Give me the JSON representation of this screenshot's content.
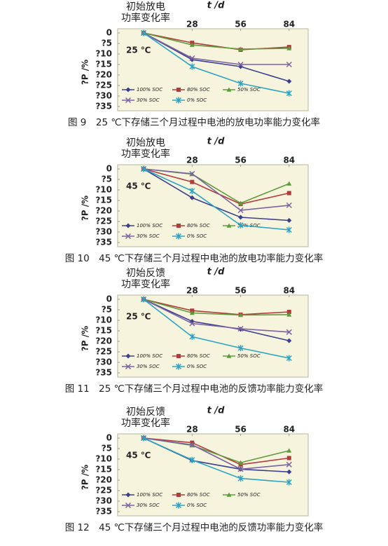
{
  "chart_data": [
    {
      "type": "line",
      "title": "图 9　25 ℃下存储三个月过程中电池的放电功率能力变化率",
      "annotation": [
        "初始放电",
        "功率变化率"
      ],
      "condition": "25 ℃",
      "xlabel": "t /d",
      "ylabel": "?P /%",
      "x": [
        0,
        28,
        56,
        84
      ],
      "xlim": [
        -15,
        95
      ],
      "xticks": [
        28,
        56,
        84
      ],
      "ylim": [
        -37,
        2
      ],
      "yticks": [
        0,
        {
          "value": -5,
          "label": "?5"
        },
        {
          "value": -10,
          "label": "?10"
        },
        {
          "value": -15,
          "label": "?15"
        },
        {
          "value": -20,
          "label": "?20"
        },
        {
          "value": -25,
          "label": "?25"
        },
        {
          "value": -30,
          "label": "?30"
        },
        {
          "value": -35,
          "label": "?35"
        }
      ],
      "series": [
        {
          "name": "100% SOC",
          "color": "#3b3f8f",
          "marker": "diamond",
          "values": [
            0,
            -12.7,
            -16,
            -23
          ]
        },
        {
          "name": "80% SOC",
          "color": "#b23b3b",
          "marker": "square",
          "values": [
            0,
            -4.7,
            -8,
            -6.7
          ]
        },
        {
          "name": "50% SOC",
          "color": "#5f9b3c",
          "marker": "triangle",
          "values": [
            0,
            -5.7,
            -7.7,
            -7.3
          ]
        },
        {
          "name": "30% SOC",
          "color": "#7a62a3",
          "marker": "cross",
          "values": [
            0,
            -12,
            -15,
            -15
          ]
        },
        {
          "name": "0% SOC",
          "color": "#2ea3c4",
          "marker": "star",
          "values": [
            0,
            -16,
            -24,
            -28.7
          ]
        }
      ]
    },
    {
      "type": "line",
      "title": "图 10　45 ℃下存储三个月过程中电池的放电功率能力变化率",
      "annotation": [
        "初始放电",
        "功率变化率"
      ],
      "condition": "45 ℃",
      "xlabel": "t /d",
      "ylabel": "?P /%",
      "x": [
        0,
        28,
        56,
        84
      ],
      "xlim": [
        -15,
        95
      ],
      "xticks": [
        28,
        56,
        84
      ],
      "ylim": [
        -37,
        2
      ],
      "yticks": [
        0,
        {
          "value": -5,
          "label": "?5"
        },
        {
          "value": -10,
          "label": "?10"
        },
        {
          "value": -15,
          "label": "?15"
        },
        {
          "value": -20,
          "label": "?20"
        },
        {
          "value": -25,
          "label": "?25"
        },
        {
          "value": -30,
          "label": "?30"
        },
        {
          "value": -35,
          "label": "?35"
        }
      ],
      "series": [
        {
          "name": "100% SOC",
          "color": "#3b3f8f",
          "marker": "diamond",
          "values": [
            0,
            -13.7,
            -23,
            -24.5
          ]
        },
        {
          "name": "80% SOC",
          "color": "#b23b3b",
          "marker": "square",
          "values": [
            0,
            -6.2,
            -16.7,
            -11.5
          ]
        },
        {
          "name": "50% SOC",
          "color": "#5f9b3c",
          "marker": "triangle",
          "values": [
            0,
            -2.5,
            -16.3,
            -7
          ]
        },
        {
          "name": "30% SOC",
          "color": "#7a62a3",
          "marker": "cross",
          "values": [
            0,
            -2.3,
            -19.7,
            -17.3
          ]
        },
        {
          "name": "0% SOC",
          "color": "#2ea3c4",
          "marker": "star",
          "values": [
            0,
            -10.5,
            -26.8,
            -29
          ]
        }
      ]
    },
    {
      "type": "line",
      "title": "图 11　25 ℃下存储三个月过程中电池的反馈功率能力变化率",
      "annotation": [
        "初始反馈",
        "功率变化率"
      ],
      "condition": "25 ℃",
      "xlabel": "t /d",
      "ylabel": "?P /%",
      "x": [
        0,
        28,
        56,
        84
      ],
      "xlim": [
        -15,
        95
      ],
      "xticks": [
        28,
        56,
        84
      ],
      "ylim": [
        -37,
        2
      ],
      "yticks": [
        0,
        {
          "value": -5,
          "label": "?5"
        },
        {
          "value": -10,
          "label": "?10"
        },
        {
          "value": -15,
          "label": "?15"
        },
        {
          "value": -20,
          "label": "?20"
        },
        {
          "value": -25,
          "label": "?25"
        },
        {
          "value": -30,
          "label": "?30"
        },
        {
          "value": -35,
          "label": "?35"
        }
      ],
      "series": [
        {
          "name": "100% SOC",
          "color": "#3b3f8f",
          "marker": "diamond",
          "values": [
            0,
            -10.5,
            -14.3,
            -19.7
          ]
        },
        {
          "name": "80% SOC",
          "color": "#b23b3b",
          "marker": "square",
          "values": [
            0,
            -5.4,
            -7.3,
            -6
          ]
        },
        {
          "name": "50% SOC",
          "color": "#5f9b3c",
          "marker": "triangle",
          "values": [
            0,
            -6.5,
            -7.5,
            -7.3
          ]
        },
        {
          "name": "30% SOC",
          "color": "#7a62a3",
          "marker": "cross",
          "values": [
            0,
            -11.5,
            -14,
            -15.6
          ]
        },
        {
          "name": "0% SOC",
          "color": "#2ea3c4",
          "marker": "star",
          "values": [
            0,
            -17.8,
            -23.2,
            -28
          ]
        }
      ]
    },
    {
      "type": "line",
      "title": "图 12　45 ℃下存储三个月过程中电池的反馈功率能力变化率",
      "annotation": [
        "初始反馈",
        "功率变化率"
      ],
      "condition": "45 ℃",
      "xlabel": "t /d",
      "ylabel": "?P /%",
      "x": [
        0,
        28,
        56,
        84
      ],
      "xlim": [
        -15,
        95
      ],
      "xticks": [
        28,
        56,
        84
      ],
      "ylim": [
        -37,
        2
      ],
      "yticks": [
        0,
        {
          "value": -5,
          "label": "?5"
        },
        {
          "value": -10,
          "label": "?10"
        },
        {
          "value": -15,
          "label": "?15"
        },
        {
          "value": -20,
          "label": "?20"
        },
        {
          "value": -25,
          "label": "?25"
        },
        {
          "value": -30,
          "label": "?30"
        },
        {
          "value": -35,
          "label": "?35"
        }
      ],
      "series": [
        {
          "name": "100% SOC",
          "color": "#3b3f8f",
          "marker": "diamond",
          "values": [
            0,
            -10.7,
            -14.8,
            -16.1
          ]
        },
        {
          "name": "80% SOC",
          "color": "#b23b3b",
          "marker": "square",
          "values": [
            0,
            -2.2,
            -12.6,
            -9.5
          ]
        },
        {
          "name": "50% SOC",
          "color": "#5f9b3c",
          "marker": "triangle",
          "values": [
            0,
            -3.5,
            -11.7,
            -6
          ]
        },
        {
          "name": "30% SOC",
          "color": "#7a62a3",
          "marker": "cross",
          "values": [
            0,
            -3.2,
            -14.8,
            -12.6
          ]
        },
        {
          "name": "0% SOC",
          "color": "#2ea3c4",
          "marker": "star",
          "values": [
            0,
            -10.4,
            -19.2,
            -21
          ]
        }
      ]
    }
  ]
}
